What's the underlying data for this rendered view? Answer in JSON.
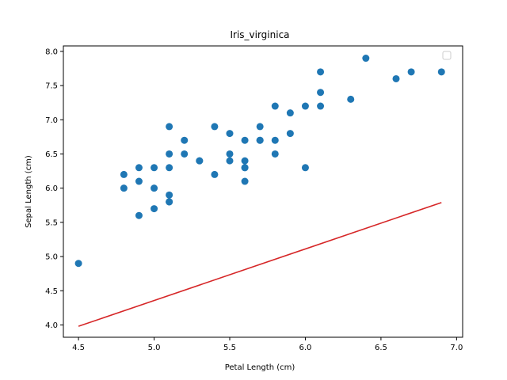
{
  "chart_data": {
    "type": "scatter",
    "title": "Iris_virginica",
    "xlabel": "Petal Length (cm)",
    "ylabel": "Sepal Length (cm)",
    "xlim": [
      4.4,
      7.04
    ],
    "ylim": [
      3.82,
      8.08
    ],
    "x_ticks": [
      "4.5",
      "5.0",
      "5.5",
      "6.0",
      "6.5",
      "7.0"
    ],
    "y_ticks": [
      "4.0",
      "4.5",
      "5.0",
      "5.5",
      "6.0",
      "6.5",
      "7.0",
      "7.5",
      "8.0"
    ],
    "grid": false,
    "legend": {
      "placement": "top-right",
      "entries": []
    },
    "colors": {
      "points": "#1f77b4",
      "line": "#d62728"
    },
    "points": [
      [
        4.5,
        4.9
      ],
      [
        4.8,
        6.2
      ],
      [
        4.8,
        6.0
      ],
      [
        4.9,
        6.3
      ],
      [
        4.9,
        6.1
      ],
      [
        4.9,
        5.6
      ],
      [
        5.0,
        6.3
      ],
      [
        5.0,
        6.0
      ],
      [
        5.0,
        5.7
      ],
      [
        5.1,
        6.9
      ],
      [
        5.1,
        6.5
      ],
      [
        5.1,
        6.3
      ],
      [
        5.1,
        5.9
      ],
      [
        5.1,
        5.8
      ],
      [
        5.1,
        5.8
      ],
      [
        5.2,
        6.7
      ],
      [
        5.2,
        6.5
      ],
      [
        5.3,
        6.4
      ],
      [
        5.3,
        6.4
      ],
      [
        5.4,
        6.9
      ],
      [
        5.4,
        6.2
      ],
      [
        5.5,
        6.8
      ],
      [
        5.5,
        6.5
      ],
      [
        5.5,
        6.4
      ],
      [
        5.6,
        6.7
      ],
      [
        5.6,
        6.4
      ],
      [
        5.6,
        6.3
      ],
      [
        5.6,
        6.3
      ],
      [
        5.6,
        6.1
      ],
      [
        5.7,
        6.9
      ],
      [
        5.7,
        6.7
      ],
      [
        5.7,
        6.7
      ],
      [
        5.8,
        7.2
      ],
      [
        5.8,
        6.7
      ],
      [
        5.8,
        6.5
      ],
      [
        5.9,
        7.1
      ],
      [
        5.9,
        6.8
      ],
      [
        6.0,
        7.2
      ],
      [
        6.0,
        6.3
      ],
      [
        6.1,
        7.7
      ],
      [
        6.1,
        7.4
      ],
      [
        6.1,
        7.2
      ],
      [
        6.3,
        7.3
      ],
      [
        6.4,
        7.9
      ],
      [
        6.6,
        7.6
      ],
      [
        6.7,
        7.7
      ],
      [
        6.9,
        7.7
      ]
    ],
    "line": {
      "x": [
        4.5,
        6.9
      ],
      "y": [
        3.98,
        5.79
      ]
    }
  }
}
